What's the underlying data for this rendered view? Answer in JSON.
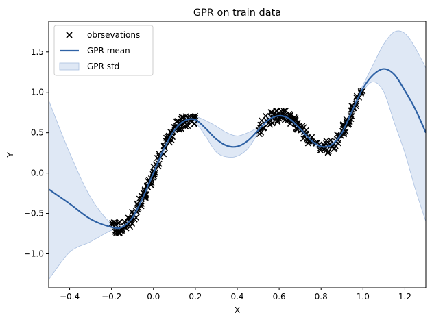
{
  "chart_data": {
    "type": "scatter",
    "title": "GPR on train data",
    "xlabel": "X",
    "ylabel": "Y",
    "xlim": [
      -0.5,
      1.3
    ],
    "ylim": [
      -1.42,
      1.88
    ],
    "xticks": [
      "−0.4",
      "−0.2",
      "0.0",
      "0.2",
      "0.4",
      "0.6",
      "0.8",
      "1.0",
      "1.2"
    ],
    "xtick_values": [
      -0.4,
      -0.2,
      0.0,
      0.2,
      0.4,
      0.6,
      0.8,
      1.0,
      1.2
    ],
    "yticks": [
      "−1.0",
      "−0.5",
      "0.0",
      "0.5",
      "1.0",
      "1.5"
    ],
    "ytick_values": [
      -1.0,
      -0.5,
      0.0,
      0.5,
      1.0,
      1.5
    ],
    "grid": false,
    "legend_position": "top-left",
    "legend": [
      {
        "label": "obrsevations",
        "marker": "x",
        "color": "#000000"
      },
      {
        "label": "GPR mean",
        "marker": "line",
        "color": "#2f62a5"
      },
      {
        "label": "GPR std",
        "marker": "patch",
        "color": "#c9d8ee"
      }
    ],
    "colors": {
      "mean": "#2f62a5",
      "std_fill": "#c9d8ee",
      "std_edge": "#a9bfe0",
      "observations": "#000000"
    },
    "observation_ranges": [
      [
        -0.2,
        0.2
      ],
      [
        0.5,
        1.0
      ]
    ],
    "series": [
      {
        "name": "GPR mean",
        "x": [
          -0.5,
          -0.4,
          -0.3,
          -0.2,
          -0.15,
          -0.1,
          -0.05,
          0.0,
          0.05,
          0.1,
          0.15,
          0.2,
          0.25,
          0.3,
          0.35,
          0.4,
          0.45,
          0.5,
          0.55,
          0.6,
          0.65,
          0.7,
          0.75,
          0.8,
          0.85,
          0.9,
          0.95,
          1.0,
          1.05,
          1.1,
          1.15,
          1.2,
          1.25,
          1.3
        ],
        "y": [
          -0.2,
          -0.38,
          -0.57,
          -0.67,
          -0.67,
          -0.55,
          -0.3,
          0.0,
          0.3,
          0.53,
          0.65,
          0.66,
          0.55,
          0.42,
          0.34,
          0.33,
          0.4,
          0.53,
          0.66,
          0.71,
          0.67,
          0.55,
          0.41,
          0.33,
          0.35,
          0.5,
          0.78,
          1.05,
          1.22,
          1.29,
          1.22,
          1.02,
          0.79,
          0.5
        ],
        "lower": [
          -1.32,
          -0.98,
          -0.85,
          -0.71,
          -0.71,
          -0.59,
          -0.34,
          -0.04,
          0.26,
          0.49,
          0.61,
          0.62,
          0.45,
          0.26,
          0.2,
          0.21,
          0.3,
          0.49,
          0.62,
          0.67,
          0.63,
          0.51,
          0.37,
          0.29,
          0.31,
          0.46,
          0.74,
          1.01,
          1.13,
          1.0,
          0.62,
          0.25,
          -0.2,
          -0.6
        ],
        "upper": [
          0.9,
          0.25,
          -0.3,
          -0.63,
          -0.63,
          -0.51,
          -0.26,
          0.04,
          0.34,
          0.57,
          0.69,
          0.7,
          0.65,
          0.58,
          0.5,
          0.46,
          0.5,
          0.57,
          0.7,
          0.75,
          0.71,
          0.59,
          0.45,
          0.37,
          0.39,
          0.54,
          0.82,
          1.09,
          1.35,
          1.6,
          1.75,
          1.73,
          1.55,
          1.3
        ]
      }
    ]
  }
}
